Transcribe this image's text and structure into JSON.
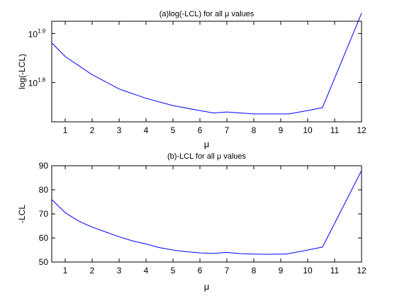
{
  "chart_data": [
    {
      "type": "line",
      "title": "(a)log(-LCL) for all μ values",
      "xlabel": "μ",
      "ylabel": "log(-LCL)",
      "xlim": [
        0.5,
        12
      ],
      "ylim": [
        1.72,
        1.925
      ],
      "yscale": "log10",
      "xticks": [
        "1",
        "2",
        "3",
        "4",
        "5",
        "6",
        "7",
        "8",
        "9",
        "10",
        "11",
        "12"
      ],
      "yticks": [
        {
          "value": 1.8,
          "base": "10",
          "exponent": "1.8"
        },
        {
          "value": 1.9,
          "base": "10",
          "exponent": "1.9"
        }
      ],
      "grid": false,
      "line_color": "#0000ff",
      "series": [
        {
          "x": [
            0.5,
            1,
            2,
            3,
            4,
            5,
            6,
            6.5,
            7,
            8,
            9,
            9.3,
            10,
            10.55,
            12
          ],
          "y": [
            1.881,
            1.853,
            1.816,
            1.787,
            1.768,
            1.753,
            1.743,
            1.738,
            1.74,
            1.736,
            1.736,
            1.736,
            1.743,
            1.749,
            1.9415
          ]
        }
      ]
    },
    {
      "type": "line",
      "title": "(b)-LCL for all μ values",
      "xlabel": "μ",
      "ylabel": "-LCL",
      "xlim": [
        0.5,
        12
      ],
      "ylim": [
        50,
        90
      ],
      "xticks": [
        "1",
        "2",
        "3",
        "4",
        "5",
        "6",
        "7",
        "8",
        "9",
        "10",
        "11",
        "12"
      ],
      "yticks": [
        "50",
        "60",
        "70",
        "80",
        "90"
      ],
      "grid": false,
      "line_color": "#0000ff",
      "series": [
        {
          "x": [
            0.5,
            1,
            1.5,
            2,
            2.5,
            3,
            3.5,
            4,
            4.5,
            5,
            5.5,
            6,
            6.5,
            7,
            7.5,
            8,
            8.5,
            9,
            9.2,
            10,
            10.55,
            12
          ],
          "y": [
            76,
            70.5,
            67,
            64.5,
            62.5,
            60.5,
            58.8,
            57.5,
            56,
            55,
            54.3,
            53.8,
            53.6,
            54,
            53.5,
            53.3,
            53.2,
            53.3,
            53.3,
            55,
            56.2,
            88
          ]
        }
      ]
    }
  ]
}
